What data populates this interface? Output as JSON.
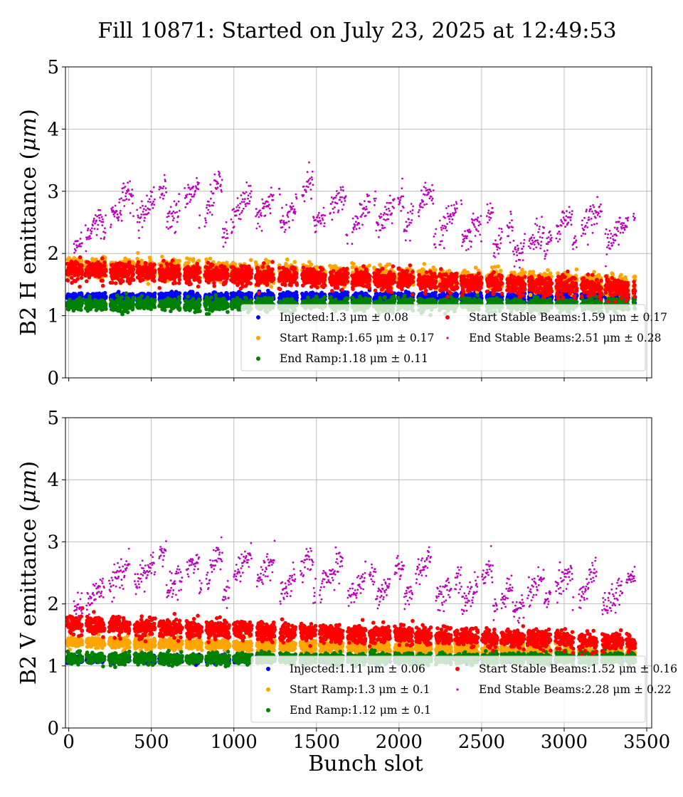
{
  "title": "Fill 10871: Started on July 23, 2025 at 12:49:53",
  "chart_data": [
    {
      "type": "scatter",
      "panel": "top",
      "ylabel_prefix": "B2 H emittance (",
      "ylabel_unit": "μm",
      "ylabel_suffix": ")",
      "xlabel": "",
      "xlim": [
        -20,
        3530
      ],
      "ylim": [
        0,
        5
      ],
      "xticks": [
        0,
        500,
        1000,
        1500,
        2000,
        2500,
        3000,
        3500
      ],
      "xtick_labels_visible": false,
      "yticks": [
        0,
        1,
        2,
        3,
        4,
        5
      ],
      "grid": true,
      "legend_placement": "lower-right",
      "series": [
        {
          "name": "Injected",
          "legend": "Injected:1.3 μm ± 0.08",
          "color": "#0000ff",
          "mean": 1.3,
          "std": 0.08,
          "marker": "dot-large",
          "profile": "inj"
        },
        {
          "name": "Start Ramp",
          "legend": "Start Ramp:1.65 μm ± 0.17",
          "color": "#ffa500",
          "mean": 1.65,
          "std": 0.17,
          "marker": "dot-large",
          "profile": "sr"
        },
        {
          "name": "End Ramp",
          "legend": "End Ramp:1.18 μm ± 0.11",
          "color": "#008000",
          "mean": 1.18,
          "std": 0.11,
          "marker": "dot-large",
          "profile": "er"
        },
        {
          "name": "Start Stable Beams",
          "legend": "Start Stable Beams:1.59 μm ± 0.17",
          "color": "#ff0000",
          "mean": 1.59,
          "std": 0.17,
          "marker": "dot-large",
          "profile": "ssb"
        },
        {
          "name": "End Stable Beams",
          "legend": "End Stable Beams:2.51 μm ± 0.28",
          "color": "#bf00bf",
          "mean": 2.51,
          "std": 0.28,
          "marker": "dot-small",
          "profile": "esb"
        }
      ],
      "esb_train_levels": [
        [
          60,
          180,
          2.15,
          2.55
        ],
        [
          230,
          360,
          2.45,
          2.95
        ],
        [
          420,
          560,
          2.55,
          3.05
        ],
        [
          620,
          760,
          2.55,
          3.05
        ],
        [
          820,
          900,
          2.55,
          3.15
        ],
        [
          940,
          1080,
          2.3,
          2.9
        ],
        [
          1110,
          1250,
          2.45,
          2.95
        ],
        [
          1300,
          1450,
          2.5,
          3.1
        ],
        [
          1500,
          1650,
          2.45,
          2.95
        ],
        [
          1700,
          1830,
          2.35,
          2.85
        ],
        [
          1850,
          2000,
          2.35,
          2.9
        ],
        [
          2050,
          2180,
          2.45,
          2.95
        ],
        [
          2230,
          2350,
          2.25,
          2.75
        ],
        [
          2400,
          2540,
          2.2,
          2.65
        ],
        [
          2570,
          2660,
          2.05,
          2.45
        ],
        [
          2720,
          2850,
          2.0,
          2.35
        ],
        [
          2870,
          3020,
          2.1,
          2.6
        ],
        [
          3050,
          3200,
          2.15,
          2.7
        ],
        [
          3260,
          3420,
          2.15,
          2.65
        ]
      ]
    },
    {
      "type": "scatter",
      "panel": "bottom",
      "ylabel_prefix": "B2 V emittance (",
      "ylabel_unit": "μm",
      "ylabel_suffix": ")",
      "xlabel": "Bunch slot",
      "xlim": [
        -20,
        3530
      ],
      "ylim": [
        0,
        5
      ],
      "xticks": [
        0,
        500,
        1000,
        1500,
        2000,
        2500,
        3000,
        3500
      ],
      "xtick_labels_visible": true,
      "yticks": [
        0,
        1,
        2,
        3,
        4,
        5
      ],
      "grid": true,
      "legend_placement": "lower-right",
      "series": [
        {
          "name": "Injected",
          "legend": "Injected:1.11 μm ± 0.06",
          "color": "#0000ff",
          "mean": 1.11,
          "std": 0.06,
          "marker": "dot-large",
          "profile": "inj"
        },
        {
          "name": "Start Ramp",
          "legend": "Start Ramp:1.3 μm ± 0.1",
          "color": "#ffa500",
          "mean": 1.3,
          "std": 0.1,
          "marker": "dot-large",
          "profile": "sr"
        },
        {
          "name": "End Ramp",
          "legend": "End Ramp:1.12 μm ± 0.1",
          "color": "#008000",
          "mean": 1.12,
          "std": 0.1,
          "marker": "dot-large",
          "profile": "er"
        },
        {
          "name": "Start Stable Beams",
          "legend": "Start Stable Beams:1.52 μm ± 0.16",
          "color": "#ff0000",
          "mean": 1.52,
          "std": 0.16,
          "marker": "dot-large",
          "profile": "ssb"
        },
        {
          "name": "End Stable Beams",
          "legend": "End Stable Beams:2.28 μm ± 0.22",
          "color": "#bf00bf",
          "mean": 2.28,
          "std": 0.22,
          "marker": "dot-small",
          "profile": "esb"
        }
      ],
      "esb_train_levels": [
        [
          60,
          180,
          1.95,
          2.25
        ],
        [
          230,
          360,
          2.2,
          2.7
        ],
        [
          420,
          560,
          2.35,
          2.8
        ],
        [
          620,
          760,
          2.25,
          2.7
        ],
        [
          820,
          900,
          2.3,
          2.8
        ],
        [
          940,
          1080,
          2.1,
          2.8
        ],
        [
          1110,
          1250,
          2.2,
          2.75
        ],
        [
          1300,
          1450,
          2.2,
          2.75
        ],
        [
          1500,
          1650,
          2.2,
          2.7
        ],
        [
          1700,
          1830,
          2.1,
          2.5
        ],
        [
          1850,
          2000,
          2.05,
          2.6
        ],
        [
          2050,
          2180,
          2.1,
          2.75
        ],
        [
          2230,
          2350,
          2.05,
          2.45
        ],
        [
          2400,
          2540,
          2.0,
          2.6
        ],
        [
          2570,
          2660,
          1.9,
          2.2
        ],
        [
          2720,
          2850,
          1.9,
          2.4
        ],
        [
          2870,
          3020,
          2.0,
          2.5
        ],
        [
          3050,
          3200,
          1.95,
          2.6
        ],
        [
          3260,
          3420,
          1.95,
          2.5
        ]
      ]
    }
  ]
}
